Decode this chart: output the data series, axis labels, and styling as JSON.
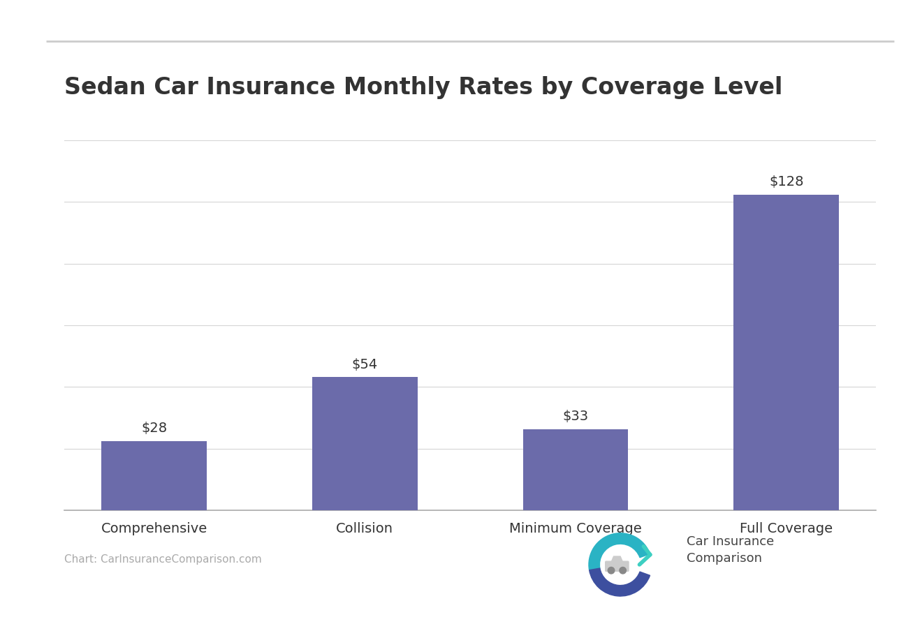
{
  "title": "Sedan Car Insurance Monthly Rates by Coverage Level",
  "categories": [
    "Comprehensive",
    "Collision",
    "Minimum Coverage",
    "Full Coverage"
  ],
  "values": [
    28,
    54,
    33,
    128
  ],
  "bar_color": "#6b6baa",
  "background_color": "#ffffff",
  "title_fontsize": 24,
  "title_fontweight": "bold",
  "label_fontsize": 14,
  "value_labels": [
    "$28",
    "$54",
    "$33",
    "$128"
  ],
  "value_label_fontsize": 14,
  "grid_color": "#d5d5d5",
  "axis_label_color": "#333333",
  "source_text": "Chart: CarInsuranceComparison.com",
  "source_fontsize": 11,
  "ylim": [
    0,
    150
  ],
  "yticks": [
    0,
    25,
    50,
    75,
    100,
    125,
    150
  ],
  "bar_width": 0.5,
  "top_line_color": "#cccccc",
  "logo_text": "Car Insurance\nComparison",
  "logo_text_fontsize": 13,
  "logo_text_color": "#444444"
}
